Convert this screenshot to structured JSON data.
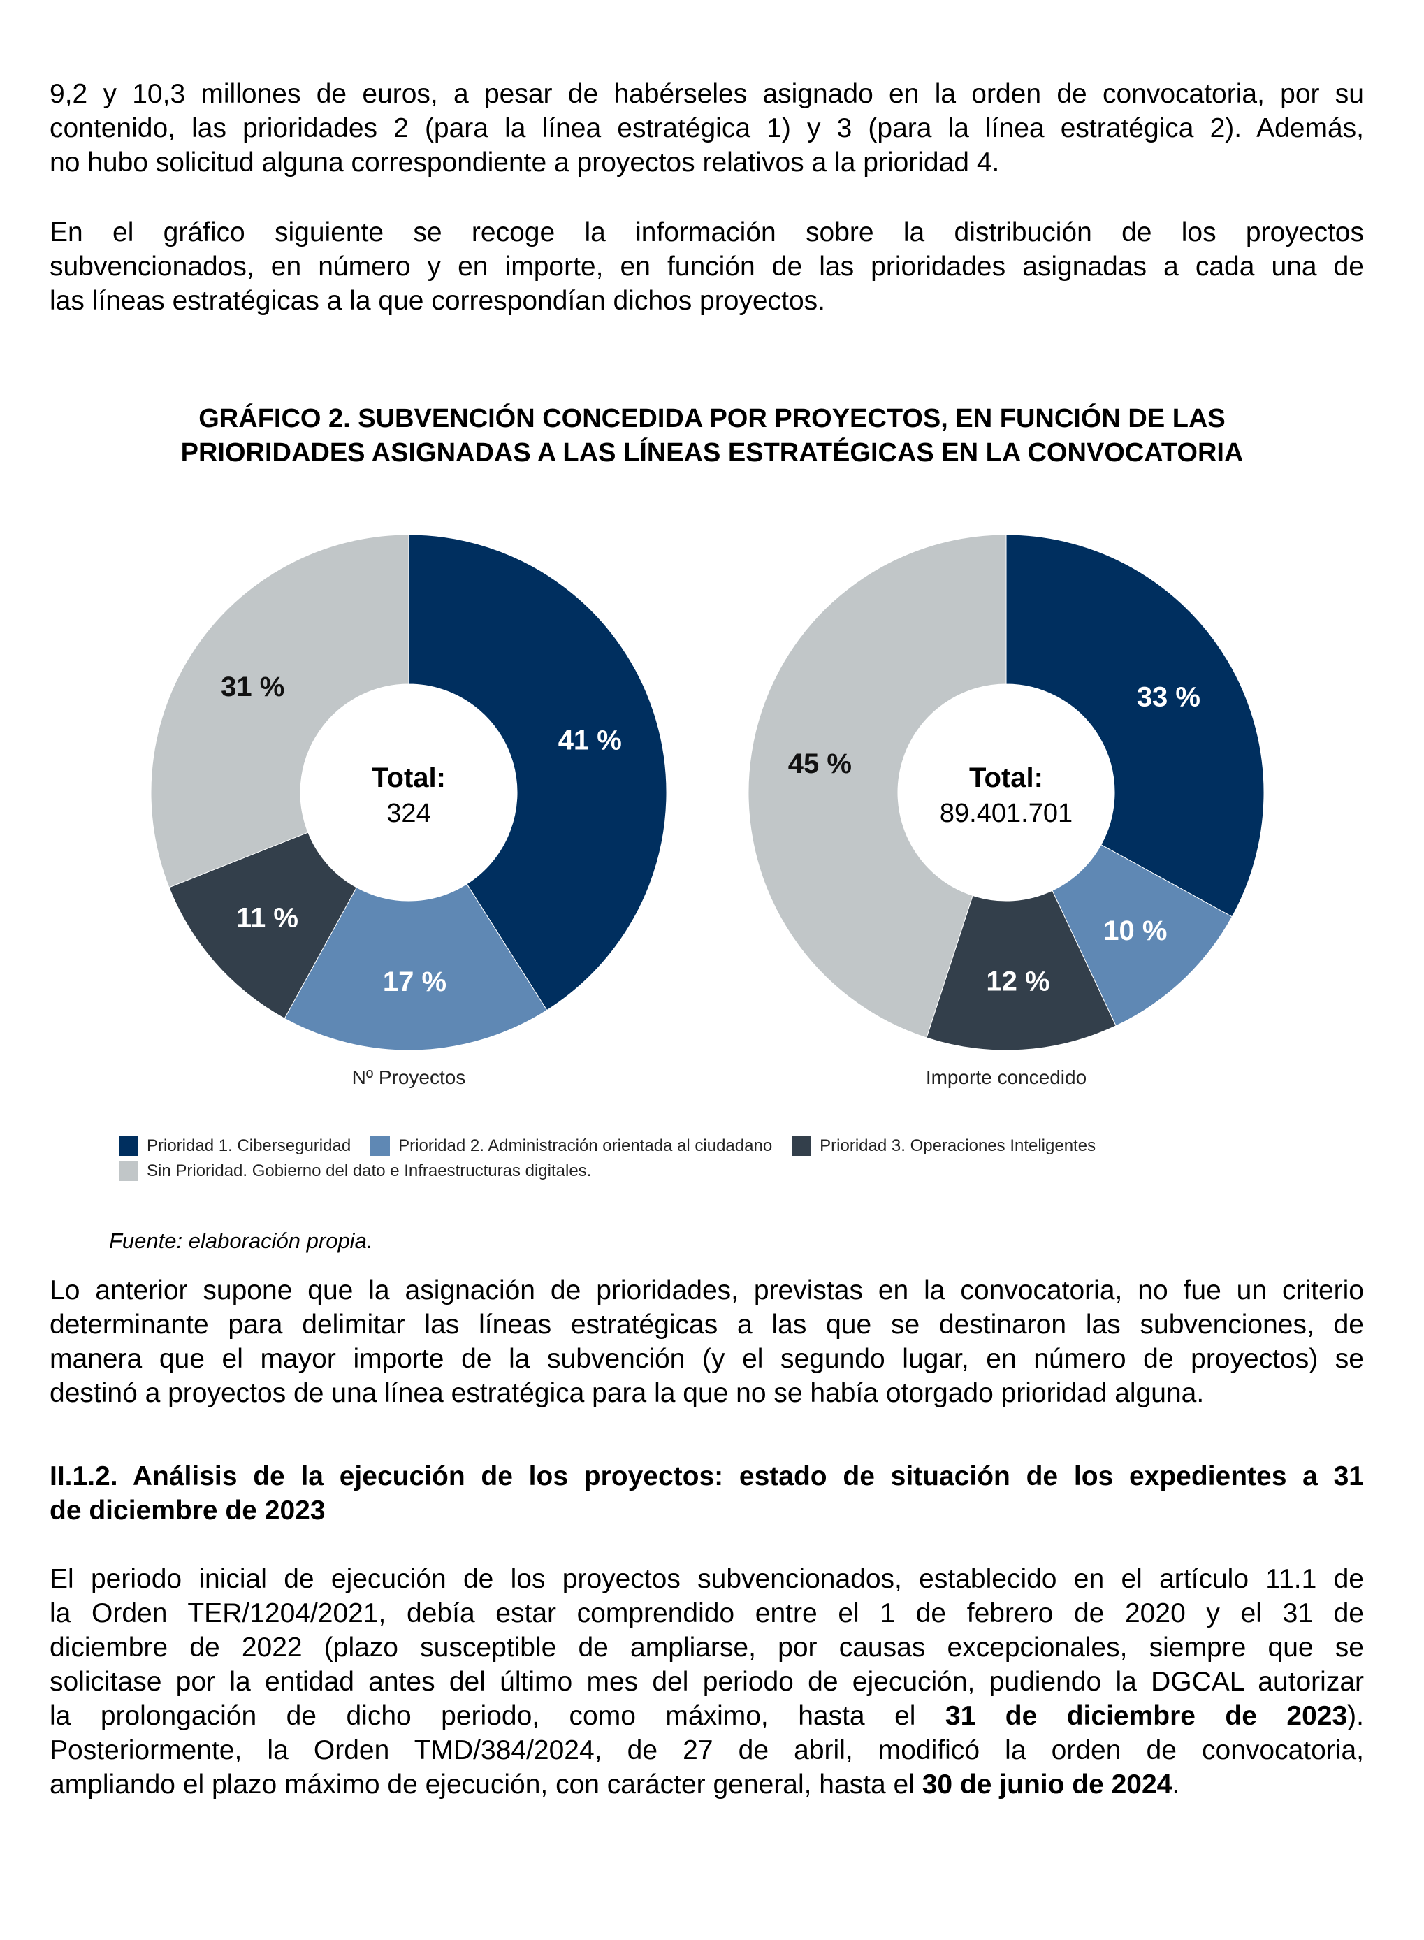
{
  "paragraphs": {
    "p1": [
      "9,2 y 10,3 millones de euros, a pesar de habérseles asignado en la orden de convocatoria, por su",
      "contenido, las prioridades 2 (para la línea estratégica 1) y 3 (para la línea estratégica 2). Además,",
      "no hubo solicitud alguna correspondiente a proyectos relativos a la prioridad 4."
    ],
    "p2": [
      "En el gráfico siguiente se recoge la información sobre la distribución de los proyectos",
      "subvencionados, en número y en importe, en función de las prioridades asignadas a cada una de",
      "las líneas estratégicas a la que correspondían dichos proyectos."
    ],
    "p3": [
      "Lo anterior supone que la asignación de prioridades, previstas en la convocatoria, no fue un criterio",
      "determinante para delimitar las líneas estratégicas a las que se destinaron las subvenciones, de",
      "manera que el mayor importe de la subvención (y el segundo lugar, en número de proyectos) se",
      "destinó a proyectos de una línea estratégica para la que no se había otorgado prioridad alguna."
    ],
    "heading": [
      "II.1.2. Análisis de la ejecución de los proyectos: estado de situación de los expedientes a 31",
      "de diciembre de 2023"
    ],
    "p4": [
      "El periodo inicial de ejecución de los proyectos subvencionados, establecido en el artículo 11.1 de",
      "la Orden TER/1204/2021, debía estar comprendido entre el 1 de febrero de 2020 y el 31 de",
      "diciembre de 2022 (plazo susceptible de ampliarse, por causas excepcionales, siempre que se",
      "solicitase por la entidad antes del último mes del periodo de ejecución, pudiendo la DGCAL autorizar"
    ],
    "p4_l5a": "la prolongación de dicho periodo, como máximo, hasta el ",
    "p4_l5b": "31 de diciembre de 2023",
    "p4_l5c": ").",
    "p4_l6": "Posteriormente, la Orden TMD/384/2024, de 27 de abril, modificó la orden de convocatoria,",
    "p4_l7a": "ampliando el plazo máximo de ejecución, con carácter general, hasta el ",
    "p4_l7b": "30 de junio de 2024",
    "p4_l7c": "."
  },
  "figure": {
    "title_1": "GRÁFICO 2.   SUBVENCIÓN CONCEDIDA POR PROYECTOS, EN FUNCIÓN DE LAS",
    "title_2": "PRIORIDADES ASIGNADAS A LAS LÍNEAS ESTRATÉGICAS EN LA CONVOCATORIA",
    "source": "Fuente: elaboración propia."
  },
  "chart_data": [
    {
      "type": "pie",
      "subtype": "donut",
      "caption": "Nº Proyectos",
      "center_label": "Total:",
      "center_value": "324",
      "categories": [
        "Prioridad 1. Ciberseguridad",
        "Prioridad 2. Administración orientada al ciudadano",
        "Prioridad 3. Operaciones Inteligentes",
        "Sin Prioridad. Gobierno del dato e Infraestructuras digitales."
      ],
      "values": [
        41,
        17,
        11,
        31
      ],
      "labels": [
        "41 %",
        "17 %",
        "11 %",
        "31 %"
      ]
    },
    {
      "type": "pie",
      "subtype": "donut",
      "caption": "Importe concedido",
      "center_label": "Total:",
      "center_value": "89.401.701",
      "categories": [
        "Prioridad 1. Ciberseguridad",
        "Prioridad 2. Administración orientada al ciudadano",
        "Prioridad 3. Operaciones Inteligentes",
        "Sin Prioridad. Gobierno del dato e Infraestructuras digitales."
      ],
      "values": [
        33,
        10,
        12,
        45
      ],
      "labels": [
        "33 %",
        "10 %",
        "12 %",
        "45 %"
      ]
    }
  ],
  "legend": {
    "items": [
      "Prioridad 1. Ciberseguridad",
      "Prioridad 2. Administración orientada al ciudadano",
      "Prioridad 3. Operaciones Inteligentes",
      "Sin Prioridad. Gobierno del dato e Infraestructuras digitales."
    ],
    "colors": [
      "#002f5f",
      "#5f88b4",
      "#333f4b",
      "#c1c6c8"
    ],
    "label_colors": [
      "#ffffff",
      "#ffffff",
      "#ffffff",
      "#111111"
    ]
  }
}
